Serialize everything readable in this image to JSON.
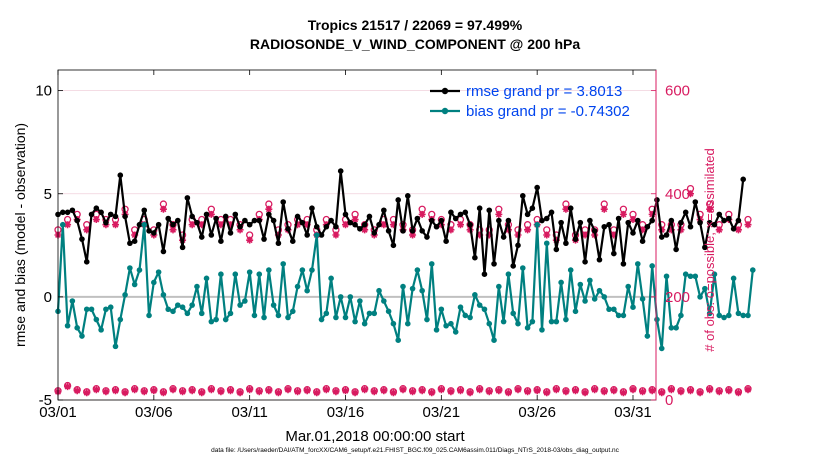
{
  "title_line1": "Tropics 21517 / 22069 = 97.499%",
  "title_line2": "RADIOSONDE_V_WIND_COMPONENT @ 200 hPa",
  "footer": "data file: /Users/raeder/DAI/ATM_forcXX/CAM6_setup/f.e21.FHIST_BGC.f09_025.CAM6assim.011/Diags_NTrS_2018-03/obs_diag_output.nc",
  "colors": {
    "rmse": "#000000",
    "bias": "#008080",
    "obs": "#d81b60",
    "legend_text": "#0044ee",
    "zero_line": "#c0c0c0",
    "right_axis": "#d81b60"
  },
  "chart_data": {
    "type": "line",
    "xlabel": "Mar.01,2018 00:00:00 start",
    "ylabel": "rmse and bias (model - observation)",
    "y2label": "# of obs: o=possible; ×=assimilated",
    "xlim": [
      0,
      31.2
    ],
    "ylim": [
      -5,
      11
    ],
    "y2lim": [
      0,
      640
    ],
    "x_ticks": [
      0,
      5,
      10,
      15,
      20,
      25,
      30
    ],
    "x_tick_labels": [
      "03/01",
      "03/06",
      "03/11",
      "03/16",
      "03/21",
      "03/26",
      "03/31"
    ],
    "y_ticks": [
      -5,
      0,
      5,
      10
    ],
    "y_tick_labels": [
      "-5",
      "0",
      "5",
      "10"
    ],
    "y2_ticks": [
      0,
      200,
      400,
      600
    ],
    "y2_tick_labels": [
      "0",
      "200",
      "400",
      "600"
    ],
    "legend": [
      {
        "label": "rmse grand pr = 3.8013",
        "series": "rmse"
      },
      {
        "label": "bias grand pr = -0.74302",
        "series": "bias"
      }
    ],
    "x_step": 0.25,
    "series": [
      {
        "name": "rmse",
        "axis": "left",
        "values": [
          4.0,
          4.1,
          4.1,
          4.2,
          3.7,
          2.8,
          1.7,
          4.0,
          4.3,
          4.1,
          3.6,
          4.0,
          3.9,
          5.9,
          3.9,
          2.6,
          2.7,
          3.5,
          4.2,
          3.2,
          3.1,
          3.5,
          2.2,
          3.8,
          3.5,
          3.7,
          2.4,
          4.8,
          3.9,
          3.6,
          2.9,
          4.0,
          3.0,
          3.8,
          2.7,
          3.9,
          3.1,
          4.0,
          3.4,
          3.7,
          3.5,
          3.7,
          3.7,
          2.8,
          4.0,
          3.7,
          2.6,
          4.6,
          3.3,
          2.7,
          3.9,
          3.6,
          3.0,
          4.3,
          3.4,
          3.0,
          3.4,
          3.7,
          3.4,
          6.1,
          4.0,
          3.6,
          3.5,
          3.3,
          3.5,
          3.9,
          3.1,
          3.5,
          4.2,
          3.2,
          2.5,
          4.7,
          3.2,
          4.9,
          3.2,
          3.8,
          3.2,
          2.9,
          3.7,
          3.4,
          3.7,
          2.7,
          4.1,
          3.8,
          4.0,
          4.1,
          3.5,
          1.9,
          4.3,
          1.1,
          4.2,
          1.6,
          3.7,
          2.9,
          3.7,
          1.5,
          2.5,
          4.9,
          4.0,
          4.3,
          5.3,
          3.7,
          3.8,
          4.1,
          2.3,
          3.6,
          2.6,
          4.3,
          2.8,
          3.6,
          1.7,
          3.7,
          3.2,
          1.8,
          3.4,
          3.5,
          2.1,
          3.8,
          1.6,
          3.6,
          3.1,
          3.7,
          2.7,
          3.4,
          3.7,
          4.7,
          2.9,
          3.0,
          3.7,
          2.3,
          3.6,
          4.1,
          3.4,
          4.6,
          3.6,
          2.4,
          3.6,
          3.5,
          4.0,
          3.7,
          3.8,
          3.3,
          3.7,
          5.7
        ]
      },
      {
        "name": "bias",
        "axis": "left",
        "values": [
          -0.7,
          3.5,
          -1.4,
          -0.2,
          -1.5,
          -1.9,
          -0.6,
          -0.6,
          -1.1,
          -1.6,
          -0.6,
          -0.5,
          -2.4,
          -1.1,
          0.1,
          1.4,
          0.6,
          1.3,
          3.5,
          -0.9,
          0.7,
          1.2,
          0.1,
          -0.6,
          -0.7,
          -0.4,
          -0.5,
          -0.8,
          -0.4,
          0.5,
          -0.8,
          0.9,
          -1.2,
          -1.1,
          1.1,
          -1.1,
          -0.8,
          1.1,
          -0.4,
          -0.2,
          1.2,
          -0.9,
          1.1,
          -1.0,
          1.3,
          -0.4,
          -0.9,
          1.6,
          -1.0,
          -0.7,
          0.5,
          1.3,
          0.3,
          1.3,
          3.0,
          -1.1,
          -0.8,
          0.9,
          -1.0,
          0.0,
          -1.0,
          0.0,
          -1.2,
          -0.2,
          -1.3,
          -0.8,
          -0.8,
          0.3,
          -0.2,
          -0.7,
          -1.3,
          -2.1,
          0.5,
          -1.3,
          0.4,
          1.3,
          0.3,
          -1.1,
          1.6,
          -1.6,
          -0.6,
          -1.4,
          -1.3,
          -1.7,
          -0.5,
          -0.9,
          -1.0,
          0.1,
          -0.4,
          -0.6,
          -1.3,
          -2.1,
          0.5,
          -1.2,
          1.1,
          -0.8,
          -1.3,
          1.4,
          -1.5,
          -1.2,
          3.5,
          -1.6,
          2.6,
          -1.2,
          -1.2,
          0.7,
          -1.1,
          1.3,
          -0.7,
          0.6,
          -0.2,
          0.8,
          -0.1,
          0.3,
          0.0,
          -0.6,
          -0.6,
          -0.9,
          -0.9,
          0.5,
          -0.5,
          1.6,
          -0.1,
          -1.9,
          1.5,
          -1.1,
          -2.5,
          1.0,
          -1.5,
          -1.5,
          -0.9,
          1.1,
          1.0,
          1.0,
          0.0,
          0.4,
          -0.8,
          1.1,
          -0.9,
          -1.0,
          -0.9,
          0.9,
          -0.8,
          -0.9,
          -0.9,
          1.3
        ]
      }
    ],
    "obs_counts": {
      "axis": "right",
      "possible_upper": [
        330,
        330,
        350,
        320,
        360,
        370,
        340,
        350,
        360,
        350,
        350,
        340,
        350,
        350,
        370,
        360,
        330,
        360,
        350,
        320,
        330,
        350,
        380,
        370,
        340,
        330,
        320,
        360,
        350,
        330,
        350,
        340,
        370,
        330,
        350,
        360,
        350,
        370,
        340,
        360,
        320,
        350,
        360,
        340,
        380,
        350,
        330,
        360,
        340,
        370,
        350,
        370,
        350,
        360,
        330,
        370,
        350,
        380,
        330,
        370,
        350,
        330,
        360,
        350,
        340,
        370,
        330,
        360,
        350,
        320,
        350,
        360,
        340,
        370,
        330,
        350,
        370,
        330,
        360,
        340,
        350,
        320,
        340,
        370,
        350,
        330,
        340,
        360,
        330,
        350,
        330,
        320,
        370,
        350,
        340,
        380,
        330,
        350,
        340,
        370,
        350,
        380,
        330,
        370,
        320,
        340,
        380,
        350,
        320,
        370,
        330,
        340,
        330,
        360,
        380,
        340,
        330,
        350,
        370,
        330,
        360,
        380,
        340,
        350,
        370,
        370,
        340,
        380,
        340,
        390,
        340,
        330,
        410,
        350,
        360,
        340,
        380,
        390,
        340,
        360,
        360,
        350,
        340,
        360,
        350,
        370
      ],
      "assimilated_upper": [
        320,
        320,
        340,
        310,
        350,
        360,
        330,
        340,
        350,
        340,
        340,
        330,
        340,
        340,
        360,
        350,
        320,
        350,
        340,
        310,
        320,
        340,
        370,
        360,
        330,
        320,
        310,
        350,
        340,
        320,
        340,
        330,
        360,
        320,
        340,
        350,
        340,
        360,
        330,
        350,
        310,
        340,
        350,
        330,
        370,
        340,
        320,
        350,
        330,
        360,
        340,
        360,
        340,
        350,
        320,
        360,
        340,
        370,
        320,
        360,
        340,
        320,
        350,
        340,
        330,
        360,
        320,
        350,
        340,
        310,
        340,
        350,
        330,
        360,
        320,
        340,
        360,
        320,
        350,
        330,
        340,
        310,
        330,
        360,
        340,
        320,
        330,
        350,
        320,
        340,
        320,
        310,
        360,
        340,
        330,
        370,
        320,
        340,
        330,
        360,
        340,
        370,
        320,
        360,
        310,
        330,
        370,
        340,
        310,
        360,
        320,
        330,
        320,
        350,
        370,
        330,
        320,
        340,
        360,
        320,
        350,
        370,
        330,
        340,
        360,
        360,
        330,
        370,
        330,
        380,
        330,
        320,
        400,
        340,
        350,
        330,
        370,
        380,
        330,
        350,
        350,
        340,
        330,
        350,
        340,
        360
      ],
      "possible_lower": [
        18,
        10,
        28,
        10,
        20,
        12,
        16,
        8,
        22,
        14,
        18,
        10,
        20,
        12,
        16,
        8,
        22,
        14,
        18,
        10,
        20,
        12,
        16,
        8,
        22,
        14,
        18,
        10,
        20,
        12,
        16,
        8,
        22,
        14,
        18,
        10,
        20,
        12,
        16,
        8,
        22,
        14,
        18,
        10,
        20,
        12,
        16,
        8,
        22,
        14,
        18,
        10,
        20,
        12,
        16,
        8,
        22,
        14,
        18,
        10,
        20,
        12,
        16,
        8,
        22,
        14,
        18,
        10,
        20,
        12,
        16,
        8,
        22,
        14,
        18,
        10,
        20,
        12,
        16,
        8,
        22,
        14,
        18,
        10,
        20,
        12,
        16,
        8,
        22,
        14,
        18,
        10,
        20,
        12,
        16,
        8,
        22,
        14,
        18,
        10,
        20,
        12,
        16,
        8,
        22,
        14,
        18,
        10,
        20,
        12,
        16,
        8,
        22,
        14,
        18,
        10,
        20,
        12,
        16,
        8,
        22,
        14,
        18,
        10,
        20,
        12,
        16,
        8,
        22,
        14,
        18,
        10,
        20,
        12,
        16,
        8,
        22,
        14,
        18,
        10,
        20,
        12,
        16,
        8,
        22,
        2
      ],
      "assimilated_lower": [
        16,
        8,
        26,
        8,
        18,
        10,
        14,
        6,
        20,
        12,
        16,
        8,
        18,
        10,
        14,
        6,
        20,
        12,
        16,
        8,
        18,
        10,
        14,
        6,
        20,
        12,
        16,
        8,
        18,
        10,
        14,
        6,
        20,
        12,
        16,
        8,
        18,
        10,
        14,
        6,
        20,
        12,
        16,
        8,
        18,
        10,
        14,
        6,
        20,
        12,
        16,
        8,
        18,
        10,
        14,
        6,
        20,
        12,
        16,
        8,
        18,
        10,
        14,
        6,
        20,
        12,
        16,
        8,
        18,
        10,
        14,
        6,
        20,
        12,
        16,
        8,
        18,
        10,
        14,
        6,
        20,
        12,
        16,
        8,
        18,
        10,
        14,
        6,
        20,
        12,
        16,
        8,
        18,
        10,
        14,
        6,
        20,
        12,
        16,
        8,
        18,
        10,
        14,
        6,
        20,
        12,
        16,
        8,
        18,
        10,
        14,
        6,
        20,
        12,
        16,
        8,
        18,
        10,
        14,
        6,
        20,
        12,
        16,
        8,
        18,
        10,
        14,
        6,
        20,
        12,
        16,
        8,
        18,
        10,
        14,
        6,
        20,
        12,
        16,
        8,
        18,
        10,
        14,
        6,
        20,
        0
      ]
    }
  }
}
